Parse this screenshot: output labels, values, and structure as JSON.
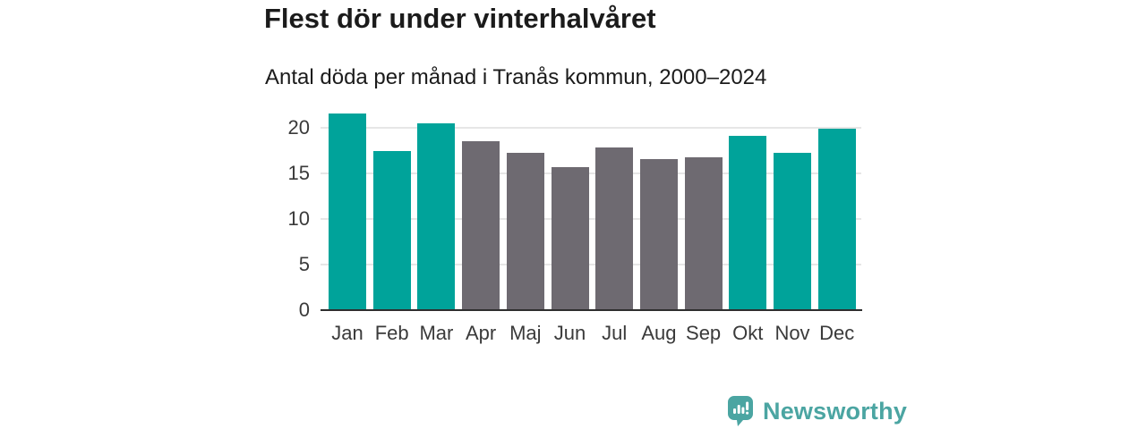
{
  "header": {
    "title": "Flest dör under vinterhalvåret",
    "subtitle": "Antal döda per månad i Tranås kommun, 2000–2024"
  },
  "chart_data": {
    "type": "bar",
    "title": "Flest dör under vinterhalvåret",
    "subtitle": "Antal döda per månad i Tranås kommun, 2000–2024",
    "categories": [
      "Jan",
      "Feb",
      "Mar",
      "Apr",
      "Maj",
      "Jun",
      "Jul",
      "Aug",
      "Sep",
      "Okt",
      "Nov",
      "Dec"
    ],
    "values": [
      21.5,
      17.4,
      20.4,
      18.4,
      17.2,
      15.6,
      17.7,
      16.5,
      16.7,
      19.0,
      17.2,
      19.8
    ],
    "point_color_keys": [
      "winter",
      "winter",
      "winter",
      "summer",
      "summer",
      "summer",
      "summer",
      "summer",
      "summer",
      "winter",
      "winter",
      "winter"
    ],
    "palette": {
      "winter": "#00A39A",
      "summer": "#6E6A71"
    },
    "xlabel": "",
    "ylabel": "",
    "yticks": [
      0,
      5,
      10,
      15,
      20
    ],
    "ylim": [
      0,
      22
    ],
    "grid": "horizontal",
    "gridline_color": "#e6e6e6",
    "axis_line_color": "#2e2e2e",
    "legend": "none"
  },
  "footer": {
    "brand": "Newsworthy",
    "brand_color": "#4BA5A2",
    "logo_icon": "bar-chart-speech-bubble-icon"
  }
}
